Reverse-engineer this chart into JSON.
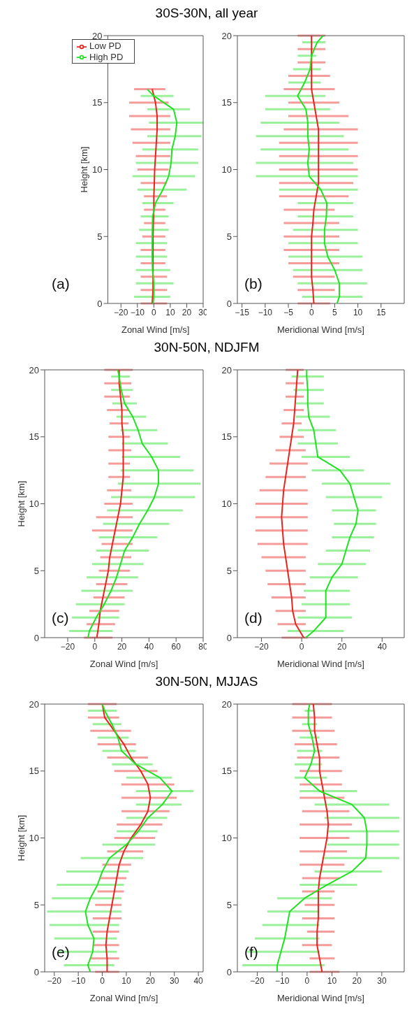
{
  "chart_data": [
    {
      "type": "line",
      "title": "30S-30N, all year",
      "xlabel": "Zonal Wind [m/s]",
      "ylabel": "Height [km]",
      "xlim": [
        -28,
        30
      ],
      "xticks": [
        -20,
        -10,
        0,
        10,
        20,
        30
      ],
      "ylim": [
        0,
        20
      ],
      "yticks": [
        0,
        5,
        10,
        15,
        20
      ],
      "legend": "top",
      "marker": "none",
      "line_style": "solid",
      "grid": false,
      "annotations": [
        "(a)"
      ],
      "series": [
        {
          "name": "Low PD",
          "color": "#e8231e",
          "values": [
            0,
            1,
            2,
            3,
            4,
            5,
            6,
            7,
            8,
            9,
            10,
            11,
            12,
            13,
            14,
            15,
            16
          ],
          "x": [
            -1,
            -0.5,
            -0.5,
            -0.5,
            -0.5,
            -0.5,
            -0.3,
            0,
            0,
            0.3,
            0.5,
            1,
            1.5,
            2,
            2,
            1,
            -1
          ],
          "xerrors": [
            [
              -8,
              8
            ],
            [
              -8,
              8
            ],
            [
              -8,
              8
            ],
            [
              -8,
              7
            ],
            [
              -8,
              7
            ],
            [
              -7,
              7
            ],
            [
              -6,
              7
            ],
            [
              -6,
              7
            ],
            [
              -6,
              8
            ],
            [
              -8,
              8
            ],
            [
              -10,
              9
            ],
            [
              -11,
              10
            ],
            [
              -13,
              10
            ],
            [
              -14,
              10
            ],
            [
              -15,
              10
            ],
            [
              -15,
              9
            ],
            [
              -12,
              7
            ]
          ]
        },
        {
          "name": "High PD",
          "color": "#22e022",
          "values": [
            0,
            0.5,
            1.5,
            2.5,
            3.5,
            4.5,
            5.5,
            6.5,
            7.5,
            8.5,
            9.5,
            10.5,
            11.5,
            12.5,
            13.5,
            14.5,
            15.5,
            16
          ],
          "x": [
            -0.5,
            0,
            0,
            -0.8,
            -1,
            -1,
            -0.9,
            -0.7,
            1,
            5.5,
            9,
            10.5,
            11,
            13,
            14,
            12,
            0,
            -4
          ],
          "xerrors": [
            null,
            [
              -12,
              10
            ],
            [
              -11,
              12
            ],
            [
              -11,
              10
            ],
            [
              -11,
              8
            ],
            [
              -11,
              8
            ],
            [
              -9,
              9
            ],
            [
              -8,
              9
            ],
            [
              -7,
              12
            ],
            [
              -10,
              20
            ],
            [
              -13,
              25
            ],
            [
              -11,
              27
            ],
            [
              -7,
              27
            ],
            [
              -4,
              29
            ],
            [
              -3,
              30
            ],
            [
              -4,
              22
            ],
            [
              -8,
              12
            ],
            null
          ]
        }
      ]
    },
    {
      "type": "line",
      "xlabel": "Meridional Wind [m/s]",
      "xlim": [
        -16,
        20
      ],
      "xticks": [
        -15,
        -10,
        -5,
        0,
        5,
        10,
        15
      ],
      "ylim": [
        0,
        20
      ],
      "yticks": [
        0,
        5,
        10,
        15,
        20
      ],
      "marker": "none",
      "line_style": "solid",
      "grid": false,
      "annotations": [
        "(b)"
      ],
      "series": [
        {
          "color": "#e8231e",
          "values": [
            0,
            1,
            2,
            3,
            4,
            5,
            6,
            7,
            8,
            9,
            10,
            11,
            12,
            13,
            14,
            15,
            16,
            17,
            18,
            19,
            20
          ],
          "x": [
            0.5,
            0.3,
            0,
            0,
            0,
            0,
            0.3,
            0.5,
            1,
            1.5,
            1.5,
            1.5,
            1.5,
            1.5,
            1,
            0.5,
            0,
            0,
            0,
            0,
            0
          ],
          "xerrors": [
            [
              -3,
              4
            ],
            [
              -3,
              5
            ],
            [
              -4,
              5
            ],
            [
              -5,
              6
            ],
            [
              -6,
              6
            ],
            [
              -6,
              6
            ],
            [
              -6,
              6
            ],
            [
              -6,
              5
            ],
            [
              -7,
              8
            ],
            [
              -7,
              9
            ],
            [
              -7,
              10
            ],
            [
              -7,
              10
            ],
            [
              -7,
              10
            ],
            [
              -6,
              10
            ],
            [
              -5,
              8
            ],
            [
              -5,
              6
            ],
            [
              -6,
              5
            ],
            [
              -5,
              4
            ],
            [
              -3,
              3
            ],
            [
              -3,
              3
            ],
            [
              -3,
              3
            ]
          ]
        },
        {
          "color": "#22e022",
          "values": [
            0,
            0.5,
            1.5,
            2.5,
            3.5,
            4.5,
            5.5,
            6.5,
            7.5,
            8.5,
            9.5,
            10.5,
            11.5,
            12.5,
            13.5,
            14.5,
            15.5,
            16.5,
            17.5,
            18.5,
            19.5,
            20
          ],
          "x": [
            5.5,
            6,
            6,
            5,
            3.5,
            2.8,
            2.8,
            3.2,
            3.3,
            2,
            -0.5,
            -0.8,
            -0.5,
            -0.8,
            -0.8,
            -1.2,
            -3,
            -1.5,
            -0.3,
            0,
            1.2,
            2.5
          ],
          "xerrors": [
            null,
            [
              -2,
              11
            ],
            [
              -3,
              12
            ],
            [
              -4,
              11
            ],
            [
              -5,
              11
            ],
            [
              -5,
              10
            ],
            [
              -4,
              10
            ],
            [
              -3,
              9
            ],
            [
              -3,
              9
            ],
            [
              -7,
              10
            ],
            [
              -12,
              10
            ],
            [
              -12,
              9
            ],
            [
              -11,
              8
            ],
            [
              -12,
              7
            ],
            [
              -11,
              6
            ],
            [
              -10,
              4
            ],
            [
              -10,
              3
            ],
            [
              -5,
              2
            ],
            [
              -4,
              2
            ],
            [
              -3,
              1
            ],
            [
              -2,
              3
            ],
            null
          ]
        }
      ]
    },
    {
      "type": "line",
      "title": "30N-50N, NDJFM",
      "xlabel": "Zonal Wind [m/s]",
      "ylabel": "Height [km]",
      "xlim": [
        -37,
        80
      ],
      "xticks": [
        -20,
        0,
        20,
        40,
        60,
        80
      ],
      "ylim": [
        0,
        20
      ],
      "yticks": [
        0,
        5,
        10,
        15,
        20
      ],
      "marker": "none",
      "line_style": "solid",
      "grid": false,
      "annotations": [
        "(c)"
      ],
      "series": [
        {
          "color": "#e8231e",
          "values": [
            0,
            1,
            2,
            3,
            4,
            5,
            6,
            7,
            8,
            9,
            10,
            11,
            12,
            13,
            14,
            15,
            16,
            17,
            18,
            19,
            20
          ],
          "x": [
            1.5,
            3,
            4,
            6,
            8,
            10,
            11,
            13,
            15,
            17,
            19,
            20,
            21,
            21,
            21,
            21,
            20,
            20,
            19,
            18,
            18
          ],
          "xerrors": [
            [
              -8,
              13
            ],
            [
              -6,
              15
            ],
            [
              -4,
              18
            ],
            [
              -1,
              22
            ],
            [
              1,
              24
            ],
            [
              3,
              26
            ],
            [
              4,
              27
            ],
            [
              5,
              28
            ],
            [
              -2,
              28
            ],
            [
              1,
              28
            ],
            [
              7,
              28
            ],
            [
              9,
              27
            ],
            [
              10,
              26
            ],
            [
              10,
              26
            ],
            [
              10,
              27
            ],
            [
              10,
              26
            ],
            [
              11,
              25
            ],
            [
              9,
              25
            ],
            [
              7,
              26
            ],
            [
              7,
              27
            ],
            [
              7,
              28
            ]
          ]
        },
        {
          "color": "#22e022",
          "values": [
            0,
            0.5,
            1.5,
            2.5,
            3.5,
            4.5,
            5.5,
            6.5,
            7.5,
            8.5,
            9.5,
            10.5,
            11.5,
            12.5,
            13.5,
            14.5,
            15.5,
            16.5,
            17.5,
            18.5,
            19.5,
            20
          ],
          "x": [
            -5,
            -4,
            1,
            7,
            12,
            16,
            19,
            22,
            28,
            33,
            39,
            44,
            47,
            47,
            42,
            35,
            32,
            28,
            22,
            19.5,
            18,
            17
          ],
          "xerrors": [
            null,
            [
              -19,
              13
            ],
            [
              -17,
              18
            ],
            [
              -14,
              22
            ],
            [
              -10,
              28
            ],
            [
              -6,
              32
            ],
            [
              -2,
              36
            ],
            [
              1,
              40
            ],
            [
              3,
              46
            ],
            [
              6,
              55
            ],
            [
              9,
              65
            ],
            [
              12,
              74
            ],
            [
              17,
              78
            ],
            [
              19,
              73
            ],
            [
              20,
              63
            ],
            [
              20,
              54
            ],
            [
              19,
              46
            ],
            [
              16,
              38
            ],
            [
              13,
              31
            ],
            [
              12,
              28
            ],
            [
              12,
              26
            ],
            null
          ]
        }
      ]
    },
    {
      "type": "line",
      "xlabel": "Meridional Wind [m/s]",
      "xlim": [
        -32,
        51
      ],
      "xticks": [
        -20,
        0,
        20,
        40
      ],
      "ylim": [
        0,
        20
      ],
      "yticks": [
        0,
        5,
        10,
        15,
        20
      ],
      "marker": "none",
      "line_style": "solid",
      "grid": false,
      "annotations": [
        "(d)"
      ],
      "series": [
        {
          "color": "#e8231e",
          "values": [
            0,
            1,
            2,
            3,
            4,
            5,
            6,
            7,
            8,
            9,
            10,
            11,
            12,
            13,
            14,
            15,
            16,
            17,
            18,
            19,
            20
          ],
          "x": [
            1,
            -3,
            -4.5,
            -5,
            -6,
            -7,
            -8,
            -9,
            -9.5,
            -10,
            -9.5,
            -9,
            -8,
            -7,
            -6,
            -5,
            -4,
            -3.5,
            -3,
            -2.5,
            -2
          ],
          "xerrors": [
            [
              -10,
              3
            ],
            [
              -12,
              2
            ],
            [
              -13,
              2
            ],
            [
              -15,
              2
            ],
            [
              -17,
              2
            ],
            [
              -18,
              2
            ],
            [
              -20,
              2
            ],
            [
              -22,
              3
            ],
            [
              -23,
              3
            ],
            [
              -23,
              3
            ],
            [
              -23,
              3
            ],
            [
              -21,
              3
            ],
            [
              -18,
              2
            ],
            [
              -16,
              3
            ],
            [
              -13,
              2
            ],
            [
              -11,
              1
            ],
            [
              -10,
              0
            ],
            [
              -9,
              1
            ],
            [
              -8,
              1
            ],
            [
              -8,
              1
            ],
            [
              -8,
              1
            ]
          ]
        },
        {
          "color": "#22e022",
          "values": [
            0,
            0.5,
            1.5,
            2.5,
            3.5,
            4.5,
            5.5,
            6.5,
            7.5,
            8.5,
            9.5,
            10.5,
            11.5,
            12.5,
            13.5,
            14.5,
            15.5,
            16.5,
            17.5,
            18.5,
            19.5,
            20
          ],
          "x": [
            2,
            6,
            12,
            12,
            12,
            15,
            20,
            22,
            24,
            27,
            28,
            26,
            24,
            19,
            8,
            7,
            6,
            3.5,
            3,
            3,
            2.5,
            2.5
          ],
          "xerrors": [
            null,
            [
              -7,
              21
            ],
            [
              -2,
              25
            ],
            [
              0,
              24
            ],
            [
              1,
              24
            ],
            [
              4,
              28
            ],
            [
              8,
              32
            ],
            [
              12,
              34
            ],
            [
              15,
              36
            ],
            [
              16,
              37
            ],
            [
              15,
              37
            ],
            [
              12,
              40
            ],
            [
              10,
              44
            ],
            [
              5,
              31
            ],
            [
              0,
              24
            ],
            [
              -2,
              18
            ],
            [
              -2,
              17
            ],
            [
              -3,
              14
            ],
            [
              -3,
              11
            ],
            [
              -4,
              11
            ],
            [
              -5,
              11
            ],
            null
          ]
        }
      ]
    },
    {
      "type": "line",
      "title": "30N-50N, MJJAS",
      "xlabel": "Zonal Wind [m/s]",
      "ylabel": "Height [km]",
      "xlim": [
        -24,
        42
      ],
      "xticks": [
        -20,
        -10,
        0,
        10,
        20,
        30,
        40
      ],
      "ylim": [
        0,
        20
      ],
      "yticks": [
        0,
        5,
        10,
        15,
        20
      ],
      "marker": "none",
      "line_style": "solid",
      "grid": false,
      "annotations": [
        "(e)"
      ],
      "series": [
        {
          "color": "#e8231e",
          "values": [
            0,
            1,
            2,
            3,
            4,
            5,
            6,
            7,
            8,
            9,
            10,
            11,
            12,
            13,
            14,
            15,
            16,
            17,
            18,
            19,
            20
          ],
          "x": [
            2,
            2,
            1.5,
            2,
            3,
            4,
            5,
            6,
            7,
            9,
            12,
            16,
            19,
            20,
            19,
            16,
            12,
            9,
            5,
            1,
            0
          ],
          "xerrors": [
            [
              -3,
              7
            ],
            [
              -5,
              7
            ],
            [
              -4,
              7
            ],
            [
              -4,
              7
            ],
            [
              -4,
              8
            ],
            [
              -3,
              8
            ],
            [
              -2,
              9
            ],
            [
              -1,
              10
            ],
            [
              0,
              12
            ],
            [
              2,
              17
            ],
            [
              5,
              22
            ],
            [
              6,
              25
            ],
            [
              8,
              28
            ],
            [
              8,
              31
            ],
            [
              8,
              30
            ],
            [
              5,
              23
            ],
            [
              2,
              19
            ],
            [
              -2,
              14
            ],
            [
              -5,
              12
            ],
            [
              -6,
              7
            ],
            [
              -6,
              6
            ]
          ]
        },
        {
          "color": "#22e022",
          "values": [
            0,
            0.5,
            1.5,
            2.5,
            3.5,
            4.5,
            5.5,
            6.5,
            7.5,
            8.5,
            9.5,
            10.5,
            11.5,
            12.5,
            13.5,
            14.5,
            15.5,
            16.5,
            17.5,
            18.5,
            19.5,
            20
          ],
          "x": [
            -5,
            -6,
            -4,
            -3.5,
            -6,
            -7,
            -5,
            -2,
            0,
            3,
            10,
            15,
            19,
            25,
            29,
            24,
            14,
            8,
            6.5,
            4,
            1,
            0
          ],
          "xerrors": [
            null,
            [
              -16,
              5
            ],
            [
              -18,
              6
            ],
            [
              -20,
              6
            ],
            [
              -22,
              7
            ],
            [
              -23,
              8
            ],
            [
              -21,
              8
            ],
            [
              -19,
              9
            ],
            [
              -15,
              11
            ],
            [
              -9,
              17
            ],
            [
              0,
              22
            ],
            [
              6,
              23
            ],
            [
              10,
              27
            ],
            [
              14,
              33
            ],
            [
              14,
              38
            ],
            [
              10,
              29
            ],
            [
              4,
              21
            ],
            [
              0,
              14
            ],
            [
              -2,
              11
            ],
            [
              -4,
              8
            ],
            [
              -6,
              6
            ],
            null
          ]
        }
      ]
    },
    {
      "type": "line",
      "xlabel": "Meridional Wind [m/s]",
      "xlim": [
        -28,
        39
      ],
      "xticks": [
        -20,
        -10,
        0,
        10,
        20,
        30
      ],
      "ylim": [
        0,
        20
      ],
      "yticks": [
        0,
        5,
        10,
        15,
        20
      ],
      "marker": "none",
      "line_style": "solid",
      "grid": false,
      "annotations": [
        "(f)"
      ],
      "series": [
        {
          "color": "#e8231e",
          "values": [
            0,
            1,
            2,
            3,
            4,
            5,
            6,
            7,
            8,
            9,
            10,
            11,
            12,
            13,
            14,
            15,
            16,
            17,
            18,
            19,
            20
          ],
          "x": [
            6,
            5,
            4,
            4,
            4.5,
            4.5,
            4.5,
            5,
            6,
            7,
            8,
            8.5,
            8,
            7,
            6,
            5,
            5,
            4,
            3,
            3,
            2.5
          ],
          "xerrors": [
            [
              1,
              13
            ],
            [
              1,
              11
            ],
            [
              -2,
              10
            ],
            [
              0,
              11
            ],
            [
              -2,
              11
            ],
            [
              -1,
              11
            ],
            [
              -2,
              11
            ],
            [
              -2,
              13
            ],
            [
              -3,
              15
            ],
            [
              -3,
              16
            ],
            [
              -3,
              17
            ],
            [
              -3,
              18
            ],
            [
              -2,
              17
            ],
            [
              -3,
              15
            ],
            [
              -3,
              14
            ],
            [
              -3,
              14
            ],
            [
              -4,
              13
            ],
            [
              -5,
              12
            ],
            [
              -6,
              11
            ],
            [
              -6,
              10
            ],
            [
              -6,
              10
            ]
          ]
        },
        {
          "color": "#22e022",
          "values": [
            0,
            0.5,
            1.5,
            2.5,
            3.5,
            4.5,
            5.5,
            6.5,
            7.5,
            8.5,
            9.5,
            10.5,
            11.5,
            12.5,
            13.5,
            14.5,
            15.5,
            16.5,
            17.5,
            18.5,
            19.5,
            20
          ],
          "x": [
            -12,
            -12,
            -10.5,
            -9,
            -8,
            -7,
            -1,
            8,
            18,
            23.5,
            24,
            24,
            23,
            18,
            5,
            -1,
            1.5,
            3,
            2,
            0.5,
            0.5,
            1
          ],
          "xerrors": [
            null,
            [
              -26,
              7
            ],
            [
              -24,
              5
            ],
            [
              -21,
              5
            ],
            [
              -18,
              5
            ],
            [
              -16,
              5
            ],
            [
              -12,
              10
            ],
            [
              -3,
              20
            ],
            [
              3,
              30
            ],
            [
              6,
              37
            ],
            [
              8,
              37
            ],
            [
              8,
              37
            ],
            [
              7,
              37
            ],
            [
              3,
              33
            ],
            [
              -3,
              20
            ],
            [
              -5,
              8
            ],
            [
              -5,
              6
            ],
            [
              -4,
              6
            ],
            [
              -3,
              5
            ],
            [
              -2,
              4
            ],
            [
              -1,
              3
            ],
            null
          ]
        }
      ]
    }
  ]
}
